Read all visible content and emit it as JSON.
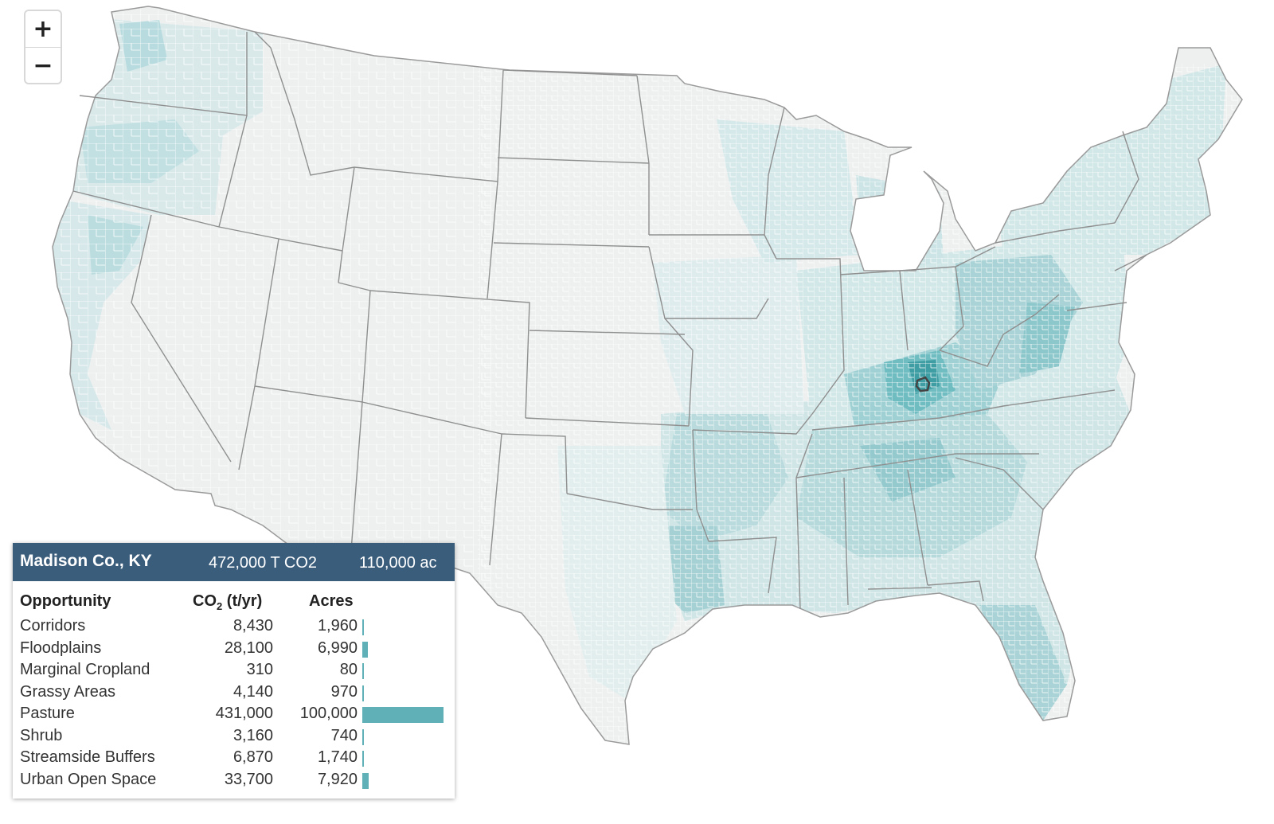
{
  "map": {
    "colors": {
      "ocean": "#ffffff",
      "base": "#eef0f0",
      "light": "#d9e9ea",
      "mid": "#a9d3d6",
      "strong": "#6fbcc1",
      "deep": "#3f9ea4",
      "state_border": "#8f8f8f",
      "county_border": "#ffffff",
      "selected_outline": "#444444"
    },
    "selected_county": "Madison Co., KY"
  },
  "zoom": {
    "in_label": "+",
    "out_label": "−"
  },
  "panel": {
    "county": "Madison Co., KY",
    "total_co2": "472,000 T CO2",
    "total_acres": "110,000 ac",
    "header_color": "#3b5d7c",
    "bar_color": "#5fb1b7",
    "columns": {
      "opportunity": "Opportunity",
      "co2_main": "CO",
      "co2_sub": "2",
      "co2_unit": " (t/yr)",
      "acres": "Acres"
    },
    "rows": [
      {
        "name": "Corridors",
        "co2": "8,430",
        "acres": "1,960",
        "acres_value": 1960
      },
      {
        "name": "Floodplains",
        "co2": "28,100",
        "acres": "6,990",
        "acres_value": 6990
      },
      {
        "name": "Marginal Cropland",
        "co2": "310",
        "acres": "80",
        "acres_value": 80
      },
      {
        "name": "Grassy Areas",
        "co2": "4,140",
        "acres": "970",
        "acres_value": 970
      },
      {
        "name": "Pasture",
        "co2": "431,000",
        "acres": "100,000",
        "acres_value": 100000
      },
      {
        "name": "Shrub",
        "co2": "3,160",
        "acres": "740",
        "acres_value": 740
      },
      {
        "name": "Streamside Buffers",
        "co2": "6,870",
        "acres": "1,740",
        "acres_value": 1740
      },
      {
        "name": "Urban Open Space",
        "co2": "33,700",
        "acres": "7,920",
        "acres_value": 7920
      }
    ]
  }
}
